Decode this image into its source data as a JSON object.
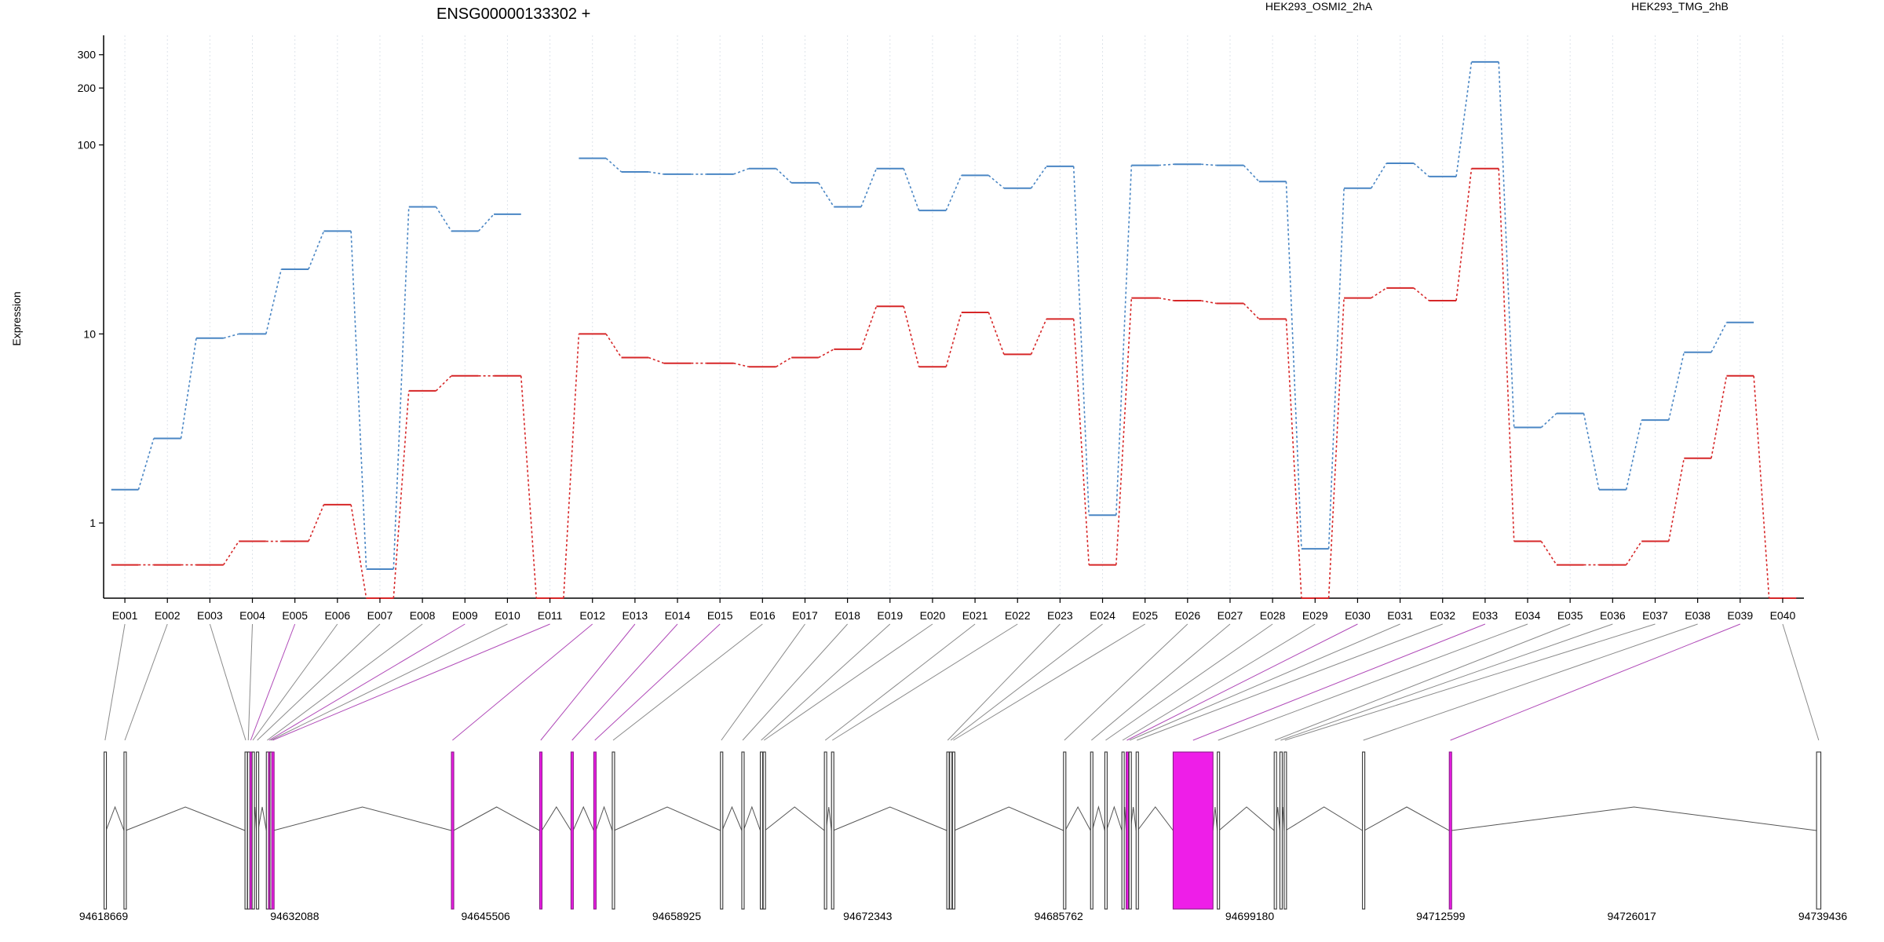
{
  "chart_data": {
    "type": "line",
    "title": "ENSG00000133302 +",
    "ylabel": "Expression",
    "yscale": "log",
    "ylim": [
      0.4,
      380
    ],
    "yticks": [
      "1",
      "10",
      "100",
      "200",
      "300"
    ],
    "ytick_values": [
      1,
      10,
      100,
      200,
      300
    ],
    "categories": [
      "E001",
      "E002",
      "E003",
      "E004",
      "E005",
      "E006",
      "E007",
      "E008",
      "E009",
      "E010",
      "E011",
      "E012",
      "E013",
      "E014",
      "E015",
      "E016",
      "E017",
      "E018",
      "E019",
      "E020",
      "E021",
      "E022",
      "E023",
      "E024",
      "E025",
      "E026",
      "E027",
      "E028",
      "E029",
      "E030",
      "E031",
      "E032",
      "E033",
      "E034",
      "E035",
      "E036",
      "E037",
      "E038",
      "E039",
      "E040"
    ],
    "series": [
      {
        "name": "HEK293_OSMI2_2hA",
        "color": "#d62728",
        "values": [
          0.6,
          0.6,
          0.6,
          0.8,
          0.8,
          1.25,
          0.4,
          5,
          6,
          6,
          0.4,
          10,
          7.5,
          7,
          7,
          6.7,
          7.5,
          8.3,
          14,
          6.7,
          13,
          7.8,
          12,
          0.6,
          15.5,
          15,
          14.5,
          12,
          0.4,
          15.5,
          17.5,
          15,
          75,
          0.8,
          0.6,
          0.6,
          0.8,
          2.2,
          6,
          0.4
        ]
      },
      {
        "name": "HEK293_TMG_2hB",
        "color": "#4a86c4",
        "values": [
          1.5,
          2.8,
          9.5,
          10,
          22,
          35,
          0.57,
          47,
          35,
          43,
          null,
          85,
          72,
          70,
          70,
          75,
          63,
          47,
          75,
          45,
          69,
          59,
          77,
          1.1,
          78,
          79,
          78,
          64,
          0.73,
          59,
          80,
          68,
          275,
          3.2,
          3.8,
          1.5,
          3.5,
          8,
          11.5,
          null
        ]
      }
    ],
    "gene_model": {
      "coordinate_labels": [
        "94618669",
        "94632088",
        "94645506",
        "94658925",
        "94672343",
        "94685762",
        "94699180",
        "94712599",
        "94726017",
        "94739436"
      ],
      "coordinate_values": [
        94618669,
        94632088,
        94645506,
        94658925,
        94672343,
        94685762,
        94699180,
        94712599,
        94726017,
        94739436
      ],
      "highlight_color": "#ee1ee8",
      "exons": [
        {
          "id": "E001",
          "start": 94618700,
          "end": 94618840,
          "hl": false
        },
        {
          "id": "E002",
          "start": 94620100,
          "end": 94620220,
          "hl": false
        },
        {
          "id": "E003",
          "start": 94628600,
          "end": 94628700,
          "hl": false
        },
        {
          "id": "E004",
          "start": 94628780,
          "end": 94628880,
          "hl": false
        },
        {
          "id": "E005",
          "start": 94628950,
          "end": 94629050,
          "hl": true
        },
        {
          "id": "E006",
          "start": 94629100,
          "end": 94629200,
          "hl": false
        },
        {
          "id": "E007",
          "start": 94629400,
          "end": 94629520,
          "hl": false
        },
        {
          "id": "E008",
          "start": 94630100,
          "end": 94630220,
          "hl": false
        },
        {
          "id": "E009",
          "start": 94630250,
          "end": 94630340,
          "hl": true
        },
        {
          "id": "E010",
          "start": 94630360,
          "end": 94630450,
          "hl": false
        },
        {
          "id": "E011",
          "start": 94630480,
          "end": 94630600,
          "hl": true
        },
        {
          "id": "E012",
          "start": 94643100,
          "end": 94643250,
          "hl": true
        },
        {
          "id": "E013",
          "start": 94649300,
          "end": 94649450,
          "hl": true
        },
        {
          "id": "E014",
          "start": 94651500,
          "end": 94651650,
          "hl": true
        },
        {
          "id": "E015",
          "start": 94653100,
          "end": 94653250,
          "hl": true
        },
        {
          "id": "E016",
          "start": 94654400,
          "end": 94654520,
          "hl": false
        },
        {
          "id": "E017",
          "start": 94662000,
          "end": 94662120,
          "hl": false
        },
        {
          "id": "E018",
          "start": 94663500,
          "end": 94663620,
          "hl": false
        },
        {
          "id": "E019",
          "start": 94664800,
          "end": 94664920,
          "hl": false
        },
        {
          "id": "E020",
          "start": 94665000,
          "end": 94665120,
          "hl": false
        },
        {
          "id": "E021",
          "start": 94669300,
          "end": 94669420,
          "hl": false
        },
        {
          "id": "E022",
          "start": 94669800,
          "end": 94669920,
          "hl": false
        },
        {
          "id": "E023",
          "start": 94677900,
          "end": 94678020,
          "hl": false
        },
        {
          "id": "E024",
          "start": 94678100,
          "end": 94678250,
          "hl": false
        },
        {
          "id": "E025",
          "start": 94678300,
          "end": 94678420,
          "hl": false
        },
        {
          "id": "E026",
          "start": 94686100,
          "end": 94686220,
          "hl": false
        },
        {
          "id": "E027",
          "start": 94688000,
          "end": 94688120,
          "hl": false
        },
        {
          "id": "E028",
          "start": 94689000,
          "end": 94689120,
          "hl": false
        },
        {
          "id": "E029",
          "start": 94690200,
          "end": 94690300,
          "hl": false
        },
        {
          "id": "E030",
          "start": 94690500,
          "end": 94690600,
          "hl": true
        },
        {
          "id": "E031",
          "start": 94690700,
          "end": 94690800,
          "hl": false
        },
        {
          "id": "E032",
          "start": 94691200,
          "end": 94691300,
          "hl": false
        },
        {
          "id": "E033",
          "start": 94693800,
          "end": 94696600,
          "hl": true
        },
        {
          "id": "E034",
          "start": 94696900,
          "end": 94697020,
          "hl": false
        },
        {
          "id": "E035",
          "start": 94700900,
          "end": 94701000,
          "hl": false
        },
        {
          "id": "E036",
          "start": 94701300,
          "end": 94701400,
          "hl": false
        },
        {
          "id": "E037",
          "start": 94701600,
          "end": 94701700,
          "hl": false
        },
        {
          "id": "E038",
          "start": 94707100,
          "end": 94707220,
          "hl": false
        },
        {
          "id": "E039",
          "start": 94713200,
          "end": 94713350,
          "hl": true
        },
        {
          "id": "E040",
          "start": 94739000,
          "end": 94739300,
          "hl": false
        }
      ]
    },
    "grid": true,
    "legend_position": "top"
  }
}
